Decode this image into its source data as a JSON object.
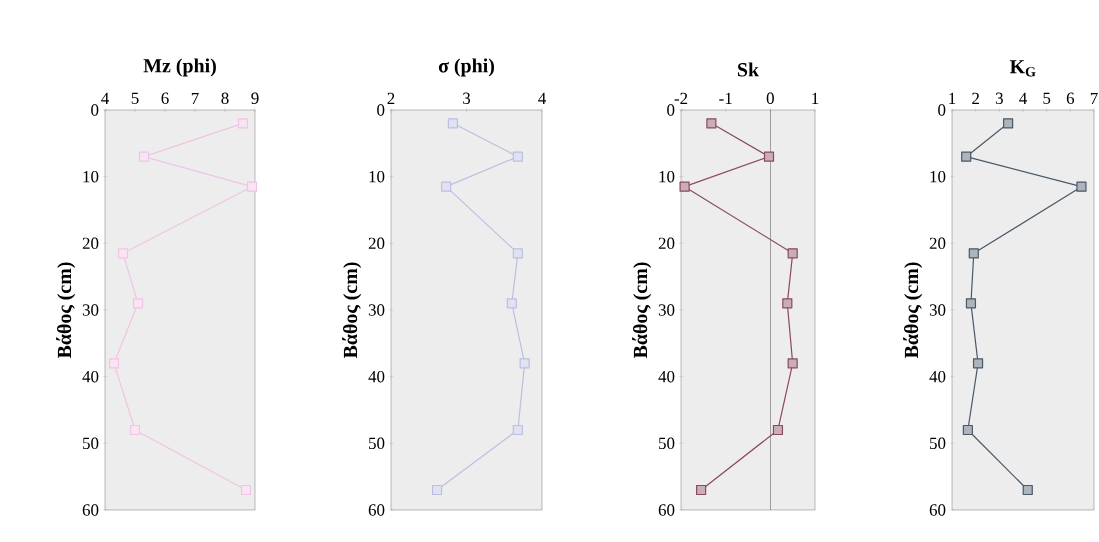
{
  "chart_data": [
    {
      "type": "line",
      "title": "**Mz (phi)**",
      "ylabel": "**Βάθος (cm)**",
      "x": [
        8.6,
        5.3,
        8.9,
        4.6,
        5.1,
        4.3,
        5.0,
        8.7
      ],
      "values": [
        2,
        7,
        11.5,
        21.5,
        29,
        38,
        48,
        57
      ],
      "color": "#f0c4e4",
      "marker": "square",
      "xlim": [
        4,
        9
      ],
      "xticks": [
        4,
        5,
        6,
        7,
        8,
        9
      ],
      "ylim": [
        60,
        0
      ],
      "yticks": [
        0,
        10,
        20,
        30,
        40,
        50,
        60
      ]
    },
    {
      "type": "line",
      "title": "**σ (phi)**",
      "ylabel": "**Βάθος (cm)**",
      "x": [
        2.82,
        3.68,
        2.73,
        3.68,
        3.6,
        3.77,
        3.68,
        2.61
      ],
      "values": [
        2,
        7,
        11.5,
        21.5,
        29,
        38,
        48,
        57
      ],
      "color": "#bcbfe0",
      "marker": "square",
      "xlim": [
        2,
        4
      ],
      "xticks": [
        2,
        3,
        4
      ],
      "ylim": [
        60,
        0
      ],
      "yticks": [
        0,
        10,
        20,
        30,
        40,
        50,
        60
      ]
    },
    {
      "type": "line",
      "title": "**Sk**",
      "ylabel": "**Βάθος (cm)**",
      "x": [
        -1.32,
        -0.03,
        -1.92,
        0.5,
        0.38,
        0.5,
        0.17,
        -1.55
      ],
      "values": [
        2,
        7,
        11.5,
        21.5,
        29,
        38,
        48,
        57
      ],
      "color": "#8a4a5c",
      "marker": "square",
      "xlim": [
        -2,
        1
      ],
      "xticks": [
        -2,
        -1,
        0,
        1
      ],
      "ylim": [
        60,
        0
      ],
      "yticks": [
        0,
        10,
        20,
        30,
        40,
        50,
        60
      ],
      "ref_lines": [
        {
          "axis": "x",
          "value": 0
        }
      ]
    },
    {
      "type": "line",
      "title": "**K$_{G}$**",
      "ylabel": "**Βάθος (cm)**",
      "x": [
        3.37,
        1.6,
        6.47,
        1.92,
        1.8,
        2.1,
        1.67,
        4.2
      ],
      "values": [
        2,
        7,
        11.5,
        21.5,
        29,
        38,
        48,
        57
      ],
      "color": "#4a5868",
      "marker": "square",
      "xlim": [
        1,
        7
      ],
      "xticks": [
        1,
        2,
        3,
        4,
        5,
        6,
        7
      ],
      "ylim": [
        60,
        0
      ],
      "yticks": [
        0,
        10,
        20,
        30,
        40,
        50,
        60
      ]
    }
  ]
}
